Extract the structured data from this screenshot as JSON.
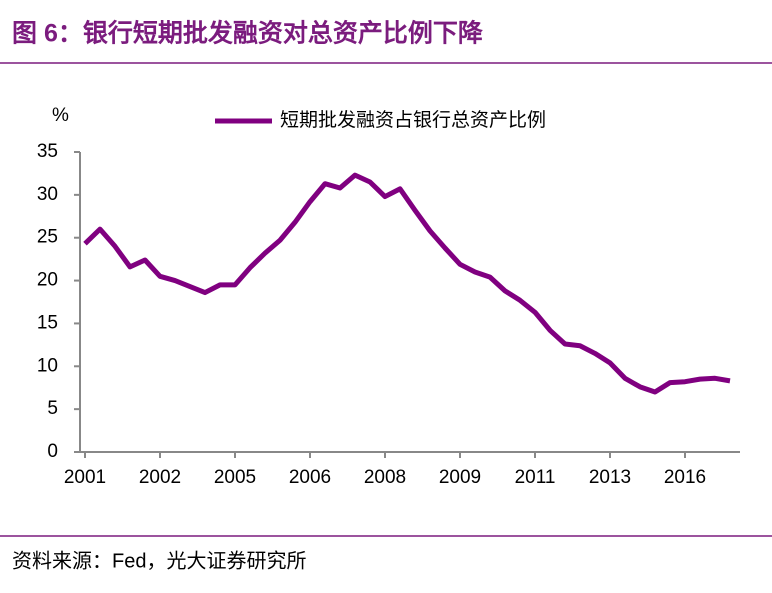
{
  "title": "图 6：银行短期批发融资对总资产比例下降",
  "source": "资料来源：Fed，光大证券研究所",
  "chart_data": {
    "type": "line",
    "y_label": "%",
    "categories": [
      "2001",
      null,
      null,
      null,
      null,
      "2002",
      null,
      null,
      null,
      null,
      "2005",
      null,
      null,
      null,
      null,
      "2006",
      null,
      null,
      null,
      null,
      "2008",
      null,
      null,
      null,
      null,
      "2009",
      null,
      null,
      null,
      null,
      "2011",
      null,
      null,
      null,
      null,
      "2013",
      null,
      null,
      null,
      null,
      "2016",
      null,
      null,
      null
    ],
    "series": [
      {
        "name": "短期批发融资占银行总资产比例",
        "color": "#800080",
        "values": [
          24.3,
          26.0,
          24.0,
          21.6,
          22.4,
          20.5,
          20.0,
          19.3,
          18.6,
          19.5,
          19.5,
          21.5,
          23.2,
          24.7,
          26.8,
          29.2,
          31.3,
          30.8,
          32.3,
          31.5,
          29.8,
          30.7,
          28.2,
          25.8,
          23.8,
          21.9,
          21.0,
          20.4,
          18.8,
          17.7,
          16.3,
          14.2,
          12.6,
          12.4,
          11.5,
          10.4,
          8.6,
          7.6,
          7.0,
          8.1,
          8.2,
          8.5,
          8.6,
          8.3
        ]
      }
    ],
    "ylim": [
      0,
      35
    ],
    "yticks": [
      0,
      5,
      10,
      15,
      20,
      25,
      30,
      35
    ],
    "grid": false,
    "legend": "top"
  }
}
